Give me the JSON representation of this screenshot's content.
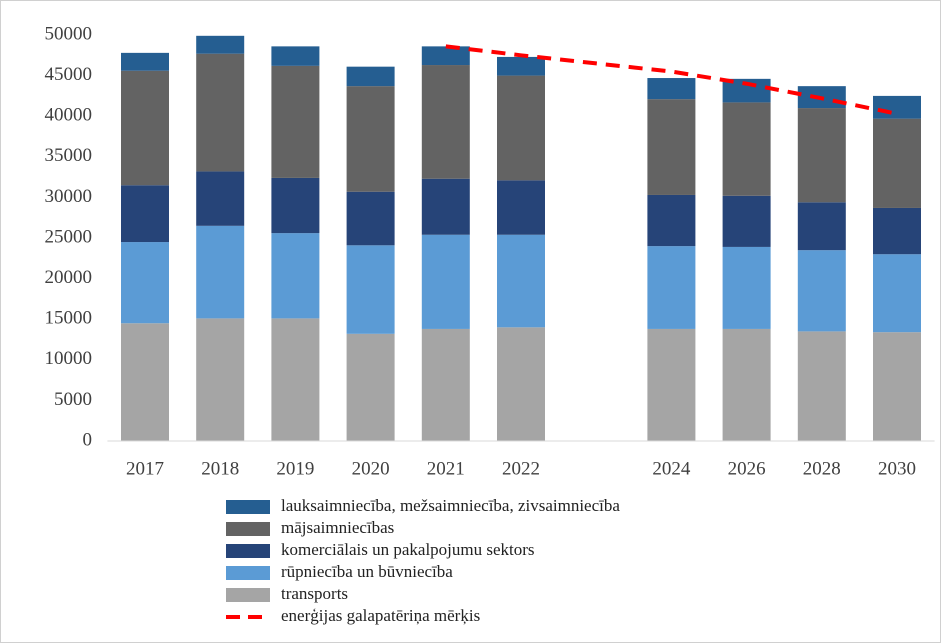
{
  "chart_data": {
    "type": "bar",
    "stacked": true,
    "categories": [
      "2017",
      "2018",
      "2019",
      "2020",
      "2021",
      "2022",
      null,
      "2024",
      "2026",
      "2028",
      "2030"
    ],
    "series": [
      {
        "name": "transports",
        "color": "#a5a5a5",
        "values": [
          14500,
          15100,
          15100,
          13200,
          13800,
          14000,
          null,
          13800,
          13800,
          13500,
          13400
        ]
      },
      {
        "name": "rūpniecība un būvniecība",
        "color": "#5b9bd5",
        "values": [
          10000,
          11400,
          10500,
          10900,
          11600,
          11400,
          null,
          10200,
          10100,
          10000,
          9600
        ]
      },
      {
        "name": "komerciālais un pakalpojumu sektors",
        "color": "#264478",
        "values": [
          7000,
          6700,
          6800,
          6600,
          6900,
          6700,
          null,
          6300,
          6300,
          5900,
          5700
        ]
      },
      {
        "name": "mājsaimniecības",
        "color": "#636363",
        "values": [
          14100,
          14500,
          13800,
          13000,
          14000,
          12900,
          null,
          11800,
          11500,
          11600,
          11000
        ]
      },
      {
        "name": "lauksaimniecība, mežsaimniecība, zivsaimniecība",
        "color": "#255e91",
        "values": [
          2200,
          2200,
          2400,
          2400,
          2300,
          2300,
          null,
          2600,
          2900,
          2700,
          2800
        ]
      },
      {
        "name": "enerģijas galapatēriņa mērķis",
        "type": "line",
        "color": "#ff0000",
        "dashed": true,
        "values": [
          null,
          null,
          null,
          null,
          48600,
          47500,
          46500,
          45500,
          44000,
          42200,
          40300
        ]
      }
    ],
    "ylim": [
      0,
      50000
    ],
    "yticks": [
      0,
      5000,
      10000,
      15000,
      20000,
      25000,
      30000,
      35000,
      40000,
      45000,
      50000
    ],
    "grid": false,
    "legend": "bottom"
  }
}
